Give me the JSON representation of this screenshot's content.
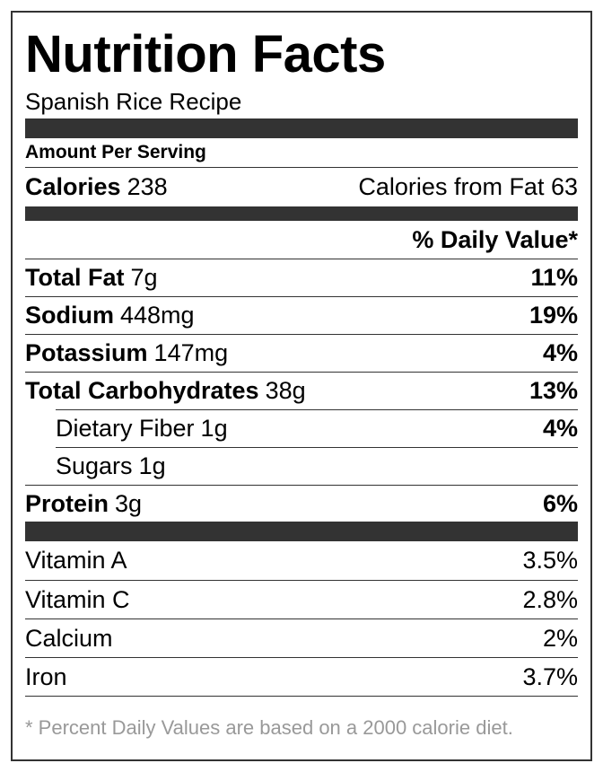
{
  "title": "Nutrition Facts",
  "subtitle": "Spanish Rice Recipe",
  "amount_per_serving": "Amount Per Serving",
  "calories": {
    "label": "Calories",
    "value": "238",
    "from_fat": "Calories from Fat 63"
  },
  "daily_value_header": "% Daily Value*",
  "nutrients": [
    {
      "name": "Total Fat",
      "amount": "7g",
      "daily_value": "11%"
    },
    {
      "name": "Sodium",
      "amount": "448mg",
      "daily_value": "19%"
    },
    {
      "name": "Potassium",
      "amount": "147mg",
      "daily_value": "4%"
    },
    {
      "name": "Total Carbohydrates",
      "amount": "38g",
      "daily_value": "13%"
    },
    {
      "name": "Dietary Fiber",
      "amount": "1g",
      "daily_value": "4%",
      "sub": true
    },
    {
      "name": "Sugars",
      "amount": "1g",
      "sub": true
    },
    {
      "name": "Protein",
      "amount": "3g",
      "daily_value": "6%"
    }
  ],
  "vitamins": [
    {
      "name": "Vitamin A",
      "daily_value": "3.5%"
    },
    {
      "name": "Vitamin C",
      "daily_value": "2.8%"
    },
    {
      "name": "Calcium",
      "daily_value": "2%"
    },
    {
      "name": "Iron",
      "daily_value": "3.7%"
    }
  ],
  "footnote": "* Percent Daily Values are based on a 2000 calorie diet."
}
